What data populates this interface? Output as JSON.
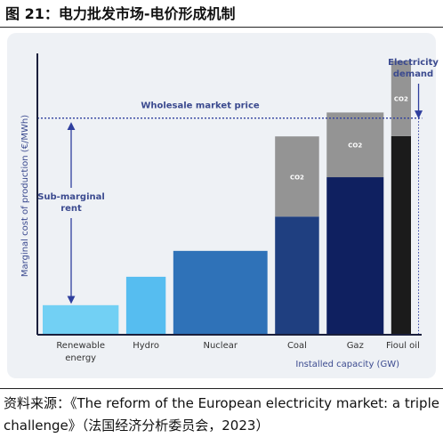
{
  "figure": {
    "title": "图 21：电力批发市场-电价形成机制",
    "source": "资料来源：《The reform of the European electricity market: a triple challenge》（法国经济分析委员会，2023）"
  },
  "colors": {
    "panel_bg": "#eef1f5",
    "axis": "#1a1f3c",
    "price_line": "#2f3f9e",
    "label_text": "#3b4a8f",
    "co2": "#949494",
    "renewable": "#72d0f4",
    "hydro": "#56bdf0",
    "nuclear": "#2f72b8",
    "coal": "#1f3f80",
    "gaz": "#0f2060",
    "fioul": "#1b1b1b"
  },
  "chart_data": {
    "type": "bar",
    "subtype": "merit-order (variable-width stacked bars)",
    "title": "",
    "xlabel": "Installed capacity (GW)",
    "ylabel": "Marginal cost of production (€/MWh)",
    "ylim": [
      0,
      100
    ],
    "grid": false,
    "categories": [
      "Renewable\nenergy",
      "Hydro",
      "Nuclear",
      "Coal",
      "Gaz",
      "Fioul oil"
    ],
    "capacity_widths": [
      1.0,
      0.52,
      1.24,
      0.58,
      0.75,
      0.26
    ],
    "gap": 0.1,
    "series": [
      {
        "name": "",
        "values": [
          10.5,
          20.6,
          29.8,
          42.0,
          56.0,
          70.6
        ]
      },
      {
        "name": "CO2",
        "values": [
          0,
          0,
          0,
          28.5,
          23.0,
          26.8
        ]
      }
    ],
    "wholesale_price": 77,
    "electricity_demand_capacity": 4.95,
    "annotations": {
      "price_label": "Wholesale market price",
      "demand_label": [
        "Electricity",
        "demand"
      ],
      "subrent_label": [
        "Sub-marginal",
        "rent"
      ],
      "co2_label": "CO2"
    }
  }
}
